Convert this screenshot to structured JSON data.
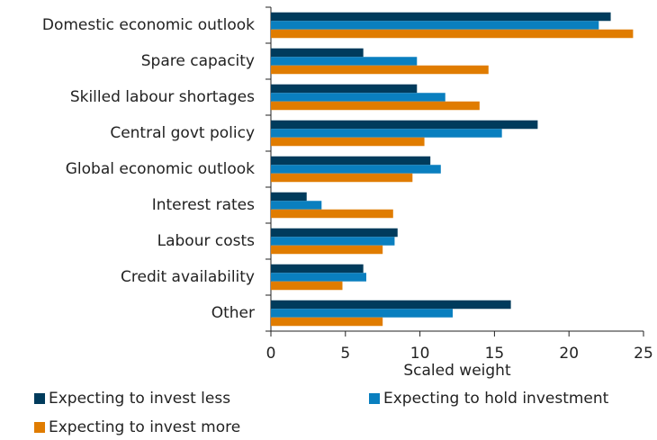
{
  "chart_data": {
    "type": "hbar",
    "categories": [
      "Domestic economic outlook",
      "Spare capacity",
      "Skilled labour shortages",
      "Central govt policy",
      "Global economic outlook",
      "Interest rates",
      "Labour costs",
      "Credit availability",
      "Other"
    ],
    "series": [
      {
        "name": "Expecting to invest less",
        "color": "#003b5c",
        "values": [
          22.8,
          6.2,
          9.8,
          17.9,
          10.7,
          2.4,
          8.5,
          6.2,
          16.1
        ]
      },
      {
        "name": "Expecting to hold investment",
        "color": "#0a7fbf",
        "values": [
          22.0,
          9.8,
          11.7,
          15.5,
          11.4,
          3.4,
          8.3,
          6.4,
          12.2
        ]
      },
      {
        "name": "Expecting to invest more",
        "color": "#e07c00",
        "values": [
          24.3,
          14.6,
          14.0,
          10.3,
          9.5,
          8.2,
          7.5,
          4.8,
          7.5
        ]
      }
    ],
    "xlabel": "Scaled weight",
    "xlim": [
      0,
      25
    ],
    "xticks": [
      0,
      5,
      10,
      15,
      20,
      25
    ]
  }
}
